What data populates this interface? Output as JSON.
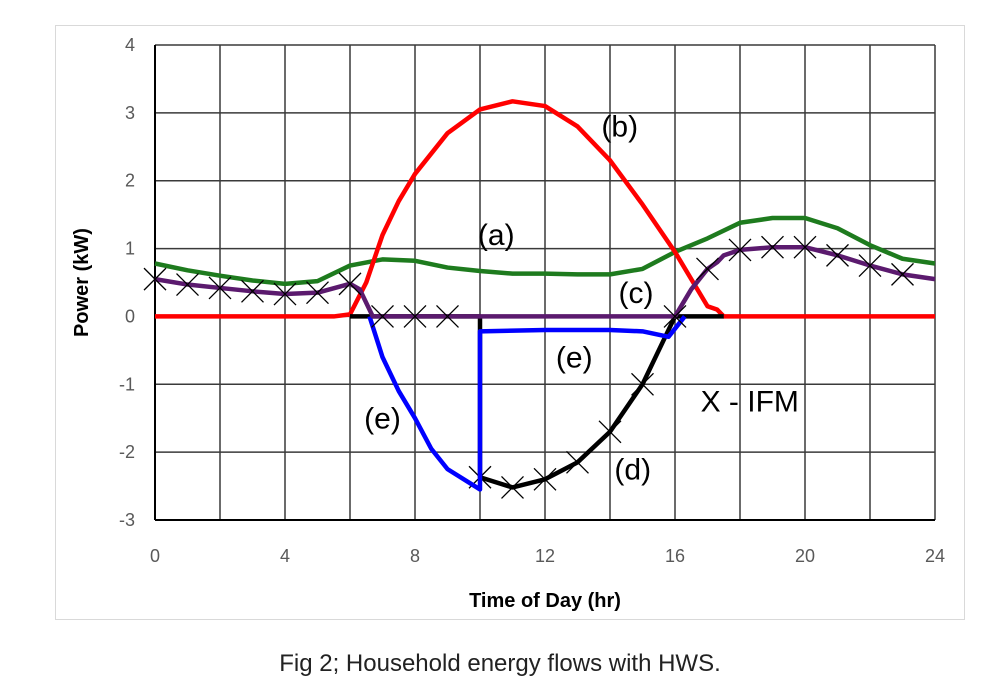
{
  "caption": "Fig 2; Household energy flows with HWS.",
  "chart_data": {
    "type": "line",
    "title": "",
    "xlabel": "Time of Day (hr)",
    "ylabel": "Power (kW)",
    "xlim": [
      0,
      24
    ],
    "ylim": [
      -3,
      4
    ],
    "xticks": [
      0,
      4,
      8,
      12,
      16,
      20,
      24
    ],
    "yticks": [
      -3,
      -2,
      -1,
      0,
      1,
      2,
      3,
      4
    ],
    "grid": true,
    "series": [
      {
        "name": "(a)",
        "color": "#1e7b1e",
        "x": [
          0,
          1,
          2,
          3,
          4,
          5,
          6,
          7,
          8,
          9,
          10,
          11,
          12,
          13,
          14,
          15,
          16,
          17,
          18,
          19,
          20,
          21,
          22,
          23,
          24
        ],
        "y": [
          0.78,
          0.68,
          0.6,
          0.53,
          0.48,
          0.52,
          0.75,
          0.84,
          0.82,
          0.72,
          0.67,
          0.63,
          0.63,
          0.62,
          0.62,
          0.7,
          0.95,
          1.15,
          1.38,
          1.45,
          1.45,
          1.3,
          1.05,
          0.85,
          0.78
        ]
      },
      {
        "name": "(b)",
        "color": "#ff0000",
        "x": [
          0,
          5.5,
          6,
          6.5,
          7,
          7.5,
          8,
          9,
          10,
          11,
          12,
          13,
          14,
          15,
          16,
          16.5,
          17,
          17.3,
          17.5,
          24
        ],
        "y": [
          0,
          0,
          0.03,
          0.5,
          1.2,
          1.7,
          2.1,
          2.7,
          3.05,
          3.17,
          3.1,
          2.8,
          2.3,
          1.65,
          0.95,
          0.55,
          0.15,
          0.1,
          0,
          0
        ]
      },
      {
        "name": "(d)",
        "color": "#000000",
        "x": [
          6,
          10,
          10,
          11,
          12,
          13,
          14,
          15,
          16,
          17.5
        ],
        "y": [
          0,
          0,
          -2.37,
          -2.52,
          -2.4,
          -2.15,
          -1.7,
          -1.0,
          0,
          0
        ],
        "markers": [
          10,
          11,
          12,
          13,
          14,
          15
        ]
      },
      {
        "name": "(e)",
        "color": "#0000ff",
        "x": [
          6.6,
          7,
          7.5,
          8,
          8.5,
          9,
          10,
          10,
          12,
          14,
          15,
          15.8,
          16.3
        ],
        "y": [
          0,
          -0.6,
          -1.1,
          -1.5,
          -1.95,
          -2.25,
          -2.55,
          -0.22,
          -0.2,
          -0.2,
          -0.22,
          -0.3,
          0
        ]
      },
      {
        "name": "(c)",
        "color": "#5b1a6e",
        "x": [
          0,
          1,
          2,
          3,
          4,
          5,
          6,
          6.3,
          6.7,
          16,
          16.5,
          17,
          17.3,
          17.5,
          18,
          19,
          20,
          21,
          22,
          23,
          24
        ],
        "y": [
          0.55,
          0.47,
          0.42,
          0.37,
          0.33,
          0.35,
          0.48,
          0.4,
          0,
          0,
          0.4,
          0.7,
          0.8,
          0.9,
          0.98,
          1.02,
          1.02,
          0.9,
          0.75,
          0.62,
          0.55
        ],
        "markers": [
          0,
          1,
          2,
          3,
          4,
          5,
          6,
          7,
          8,
          9,
          16,
          17,
          18,
          19,
          20,
          21,
          22,
          23
        ]
      }
    ],
    "annotations": [
      {
        "text": "(a)",
        "x": 10.5,
        "y": 1.05
      },
      {
        "text": "(b)",
        "x": 14.3,
        "y": 2.65
      },
      {
        "text": "(c)",
        "x": 14.8,
        "y": 0.2
      },
      {
        "text": "(e)",
        "x": 12.9,
        "y": -0.75
      },
      {
        "text": "(e)",
        "x": 7.0,
        "y": -1.65
      },
      {
        "text": "(d)",
        "x": 14.7,
        "y": -2.4
      },
      {
        "text": "X - IFM",
        "x": 18.3,
        "y": -1.4
      }
    ]
  }
}
